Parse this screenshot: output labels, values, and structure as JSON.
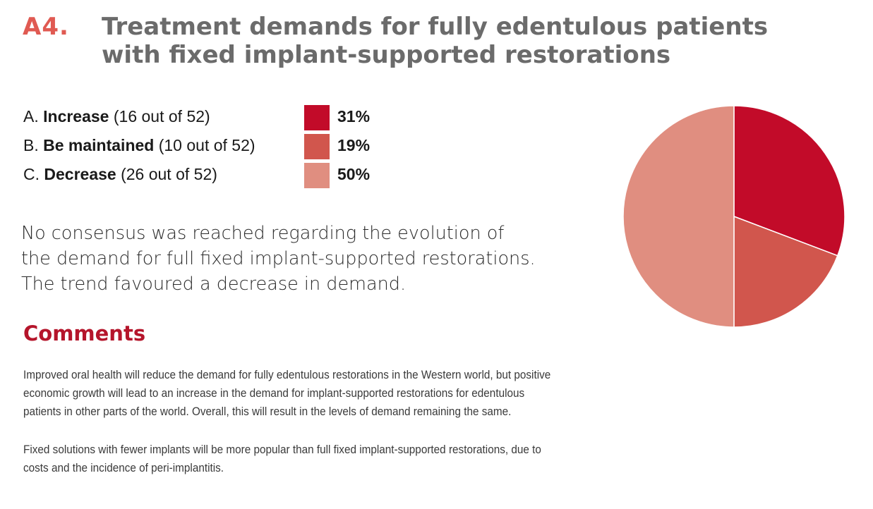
{
  "header": {
    "number": "A4.",
    "title_lines": [
      "Treatment demands for fully edentulous patients",
      "with fixed implant-supported restorations"
    ]
  },
  "legend": [
    {
      "letter": "A.",
      "label": "Increase",
      "count": "(16 out of 52)",
      "percent": "31%",
      "color": "#c20b29"
    },
    {
      "letter": "B.",
      "label": "Be maintained",
      "count": "(10 out of 52)",
      "percent": "19%",
      "color": "#d1564d"
    },
    {
      "letter": "C.",
      "label": "Decrease",
      "count": "(26 out of 52)",
      "percent": "50%",
      "color": "#e08e80"
    }
  ],
  "conclusion_lines": [
    "No consensus was reached regarding the evolution of",
    "the demand for full fixed implant-supported restorations.",
    "The trend favoured a decrease in demand."
  ],
  "comments": {
    "heading": "Comments",
    "paragraphs": [
      [
        "Improved oral health will reduce the demand for fully edentulous restorations in the Western world, but positive",
        "economic growth will lead to an increase in the demand for implant-supported restorations for edentulous",
        "patients in other parts of the world. Overall, this will result in the levels of demand remaining the same."
      ],
      [
        "Fixed solutions with fewer implants will be more popular than full fixed implant-supported restorations, due to",
        "costs and the incidence of peri-implantitis."
      ]
    ]
  },
  "colors": {
    "accent_number": "#e05a52",
    "title": "#6b6b6b",
    "comments_heading": "#b5152b"
  },
  "chart_data": {
    "type": "pie",
    "categories": [
      "Increase",
      "Be maintained",
      "Decrease"
    ],
    "values": [
      16,
      10,
      26
    ],
    "percent_labels": [
      "31%",
      "19%",
      "50%"
    ],
    "colors": [
      "#c20b29",
      "#d1564d",
      "#e08e80"
    ],
    "start": "12 o'clock",
    "direction": "clockwise"
  }
}
